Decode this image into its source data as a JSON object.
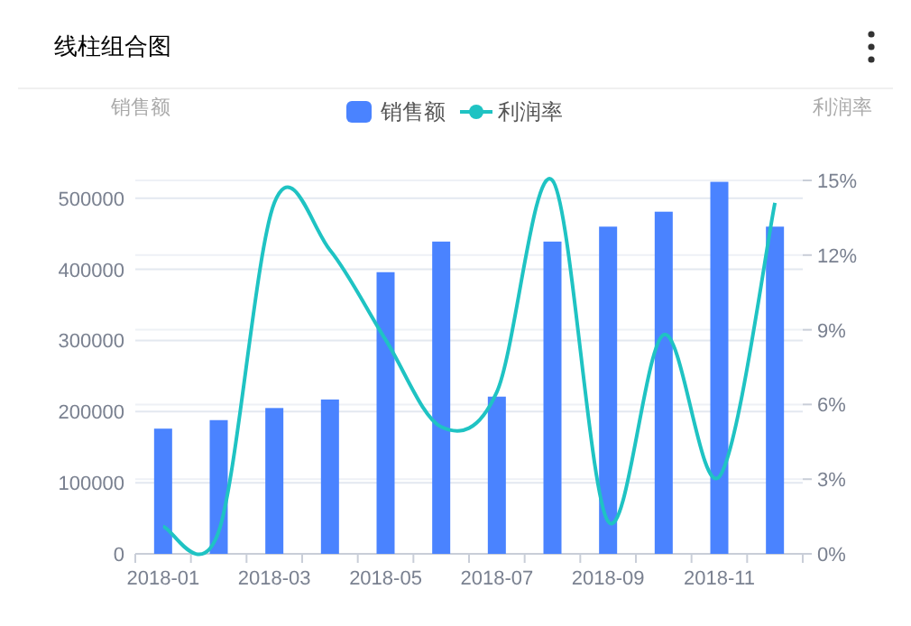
{
  "chart_data": {
    "type": "bar",
    "title": "线柱组合图",
    "ylabel": "销售额",
    "y2label": "利润率",
    "categories": [
      "2018-01",
      null,
      "2018-03",
      null,
      "2018-05",
      null,
      "2018-07",
      null,
      "2018-09",
      null,
      "2018-11",
      null
    ],
    "series": [
      {
        "name": "销售额",
        "color": "#4a83ff",
        "values": [
          176000,
          188000,
          205000,
          217000,
          396000,
          439000,
          221000,
          439000,
          460000,
          481000,
          523000,
          460000
        ]
      },
      {
        "name": "利润率",
        "type": "line",
        "axis": "y2",
        "color": "#1fc3c3",
        "values": [
          1.1,
          0.9,
          14.1,
          12.2,
          8.6,
          5.1,
          6.5,
          15,
          1.3,
          8.8,
          3.1,
          14.1
        ]
      }
    ],
    "ylim": [
      0,
      525000
    ],
    "yticks": [
      0,
      100000,
      200000,
      300000,
      400000,
      500000
    ],
    "y2lim": [
      0,
      15
    ],
    "y2ticks": [
      {
        "value": 0,
        "label": "0%"
      },
      {
        "value": 3,
        "label": "3%"
      },
      {
        "value": 6,
        "label": "6%"
      },
      {
        "value": 9,
        "label": "9%"
      },
      {
        "value": 12,
        "label": "12%"
      },
      {
        "value": 15,
        "label": "15%"
      }
    ],
    "grid": true,
    "legend": "top"
  }
}
